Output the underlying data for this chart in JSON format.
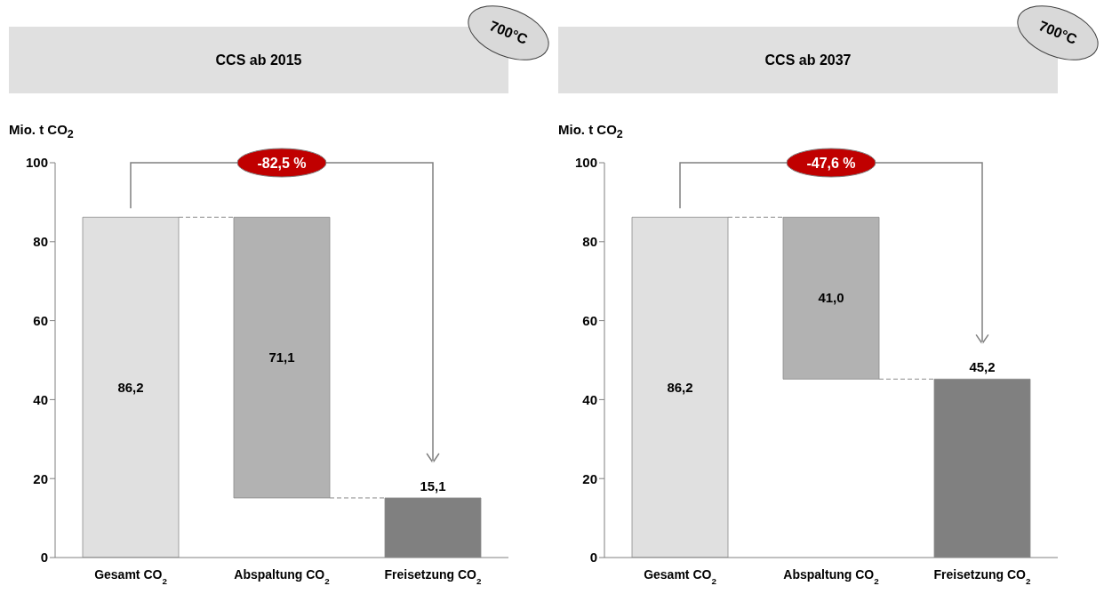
{
  "chart_data": [
    {
      "type": "bar",
      "title": "CCS ab 2015",
      "ylabel": "Mio. t CO$_{2}$",
      "categories": [
        "Gesamt CO$_{2}$",
        "Abspaltung CO$_{2}$",
        "Freisetzung CO$_{2}$"
      ],
      "values": [
        86.2,
        71.1,
        15.1
      ],
      "base": [
        0,
        15.1,
        0
      ],
      "colors": [
        "#e0e0e0",
        "#b2b2b2",
        "#808080"
      ],
      "value_labels": [
        "86,2",
        "71,1",
        "15,1"
      ],
      "ylim": [
        0,
        100
      ],
      "yticks": [
        0,
        20,
        40,
        60,
        80,
        100
      ],
      "annotations": [
        "-82,5 %",
        "700°C"
      ]
    },
    {
      "type": "bar",
      "title": "CCS ab 2037",
      "ylabel": "Mio. t CO$_{2}$",
      "categories": [
        "Gesamt CO$_{2}$",
        "Abspaltung CO$_{2}$",
        "Freisetzung CO$_{2}$"
      ],
      "values": [
        86.2,
        41.0,
        45.2
      ],
      "base": [
        0,
        45.2,
        0
      ],
      "colors": [
        "#e0e0e0",
        "#b2b2b2",
        "#808080"
      ],
      "value_labels": [
        "86,2",
        "41,0",
        "45,2"
      ],
      "ylim": [
        0,
        100
      ],
      "yticks": [
        0,
        20,
        40,
        60,
        80,
        100
      ],
      "annotations": [
        "-47,6 %",
        "700°C"
      ]
    }
  ]
}
